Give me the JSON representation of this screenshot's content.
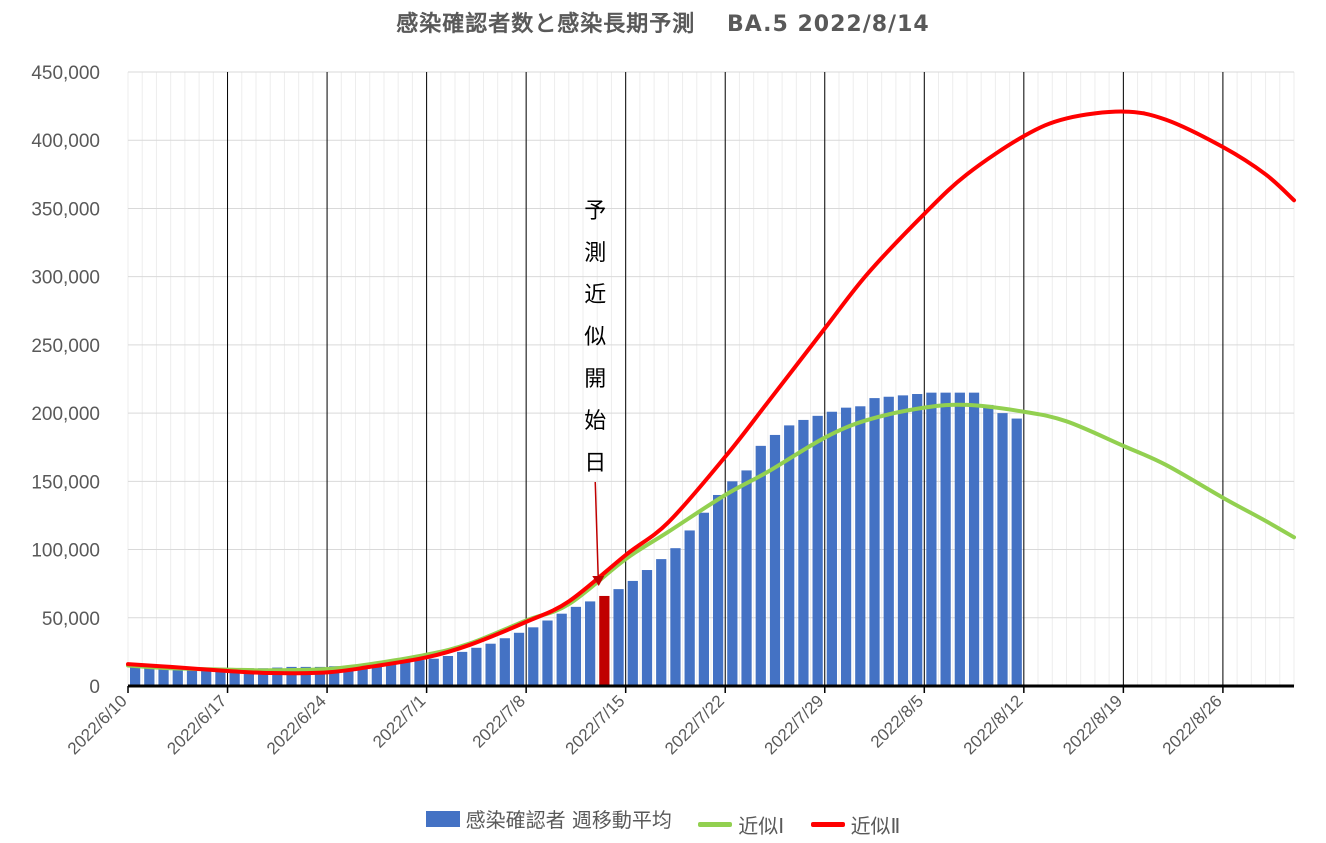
{
  "chart_data": {
    "type": "bar",
    "title": "感染確認者数と感染長期予測　 BA.5  2022/8/14",
    "x_start": "2022/6/10",
    "x_end": "2022/8/31",
    "x_tick_labels": [
      "2022/6/10",
      "2022/6/17",
      "2022/6/24",
      "2022/7/1",
      "2022/7/8",
      "2022/7/15",
      "2022/7/22",
      "2022/7/29",
      "2022/8/5",
      "2022/8/12",
      "2022/8/19",
      "2022/8/26"
    ],
    "y_tick_labels": [
      "0",
      "50,000",
      "100,000",
      "150,000",
      "200,000",
      "250,000",
      "300,000",
      "350,000",
      "400,000",
      "450,000"
    ],
    "ylim": [
      0,
      450000
    ],
    "grid": true,
    "legend_position": "bottom",
    "annotation": {
      "text": [
        "予",
        "測",
        "近",
        "似",
        "開",
        "始",
        "日"
      ],
      "date": "2022/7/13",
      "value": 66000
    },
    "series": [
      {
        "name": "感染確認者 週移動平均",
        "type": "bar",
        "color": "#4472C4",
        "highlight_date": "2022/7/13",
        "highlight_color": "#C00000",
        "x": [
          "2022/6/10",
          "2022/6/11",
          "2022/6/12",
          "2022/6/13",
          "2022/6/14",
          "2022/6/15",
          "2022/6/16",
          "2022/6/17",
          "2022/6/18",
          "2022/6/19",
          "2022/6/20",
          "2022/6/21",
          "2022/6/22",
          "2022/6/23",
          "2022/6/24",
          "2022/6/25",
          "2022/6/26",
          "2022/6/27",
          "2022/6/28",
          "2022/6/29",
          "2022/6/30",
          "2022/7/1",
          "2022/7/2",
          "2022/7/3",
          "2022/7/4",
          "2022/7/5",
          "2022/7/6",
          "2022/7/7",
          "2022/7/8",
          "2022/7/9",
          "2022/7/10",
          "2022/7/11",
          "2022/7/12",
          "2022/7/13",
          "2022/7/14",
          "2022/7/15",
          "2022/7/16",
          "2022/7/17",
          "2022/7/18",
          "2022/7/19",
          "2022/7/20",
          "2022/7/21",
          "2022/7/22",
          "2022/7/23",
          "2022/7/24",
          "2022/7/25",
          "2022/7/26",
          "2022/7/27",
          "2022/7/28",
          "2022/7/29",
          "2022/7/30",
          "2022/7/31",
          "2022/8/1",
          "2022/8/2",
          "2022/8/3",
          "2022/8/4",
          "2022/8/5",
          "2022/8/6",
          "2022/8/7",
          "2022/8/8",
          "2022/8/9",
          "2022/8/10",
          "2022/8/11"
        ],
        "values": [
          14000,
          13000,
          12500,
          12500,
          12500,
          12500,
          12500,
          13000,
          13000,
          13000,
          13500,
          14000,
          14000,
          14000,
          14500,
          15000,
          15500,
          16000,
          16500,
          17500,
          19000,
          20000,
          22000,
          25000,
          28000,
          31000,
          35000,
          39000,
          43000,
          48000,
          53000,
          58000,
          62000,
          66000,
          71000,
          77000,
          85000,
          93000,
          101000,
          114000,
          127000,
          140000,
          150000,
          158000,
          176000,
          184000,
          191000,
          195000,
          198000,
          201000,
          204000,
          205000,
          211000,
          212000,
          213000,
          214000,
          215000,
          215000,
          215000,
          215000,
          206000,
          200000,
          196000
        ]
      },
      {
        "name": "近似Ⅰ",
        "type": "line",
        "color": "#92D050",
        "x": [
          "2022/6/10",
          "2022/6/13",
          "2022/6/17",
          "2022/6/20",
          "2022/6/24",
          "2022/6/27",
          "2022/7/1",
          "2022/7/4",
          "2022/7/8",
          "2022/7/11",
          "2022/7/15",
          "2022/7/18",
          "2022/7/22",
          "2022/7/25",
          "2022/7/29",
          "2022/8/1",
          "2022/8/5",
          "2022/8/8",
          "2022/8/12",
          "2022/8/15",
          "2022/8/19",
          "2022/8/22",
          "2022/8/26",
          "2022/8/29",
          "2022/8/31"
        ],
        "values": [
          15000,
          13000,
          12000,
          11500,
          12500,
          16000,
          23000,
          31000,
          48000,
          60000,
          93000,
          113000,
          140000,
          157000,
          182000,
          195000,
          204000,
          206000,
          201000,
          194000,
          176000,
          162000,
          138000,
          121000,
          109000
        ]
      },
      {
        "name": "近似Ⅱ",
        "type": "line",
        "color": "#FF0000",
        "x": [
          "2022/6/10",
          "2022/6/13",
          "2022/6/17",
          "2022/6/20",
          "2022/6/24",
          "2022/6/27",
          "2022/7/1",
          "2022/7/4",
          "2022/7/8",
          "2022/7/11",
          "2022/7/15",
          "2022/7/18",
          "2022/7/22",
          "2022/7/25",
          "2022/7/29",
          "2022/8/1",
          "2022/8/5",
          "2022/8/8",
          "2022/8/12",
          "2022/8/15",
          "2022/8/19",
          "2022/8/22",
          "2022/8/26",
          "2022/8/29",
          "2022/8/31"
        ],
        "values": [
          16000,
          14000,
          11000,
          9500,
          10000,
          14000,
          21000,
          30000,
          47000,
          62000,
          96000,
          120000,
          168000,
          208000,
          262000,
          302000,
          346000,
          375000,
          403000,
          416000,
          421000,
          415000,
          395000,
          375000,
          356000
        ]
      }
    ]
  },
  "colors": {
    "axis_line": "#000000",
    "gridline_major": "#D9D9D9",
    "gridline_minor": "#EDEDED",
    "week_line": "#000000",
    "arrow": "#C00000"
  }
}
